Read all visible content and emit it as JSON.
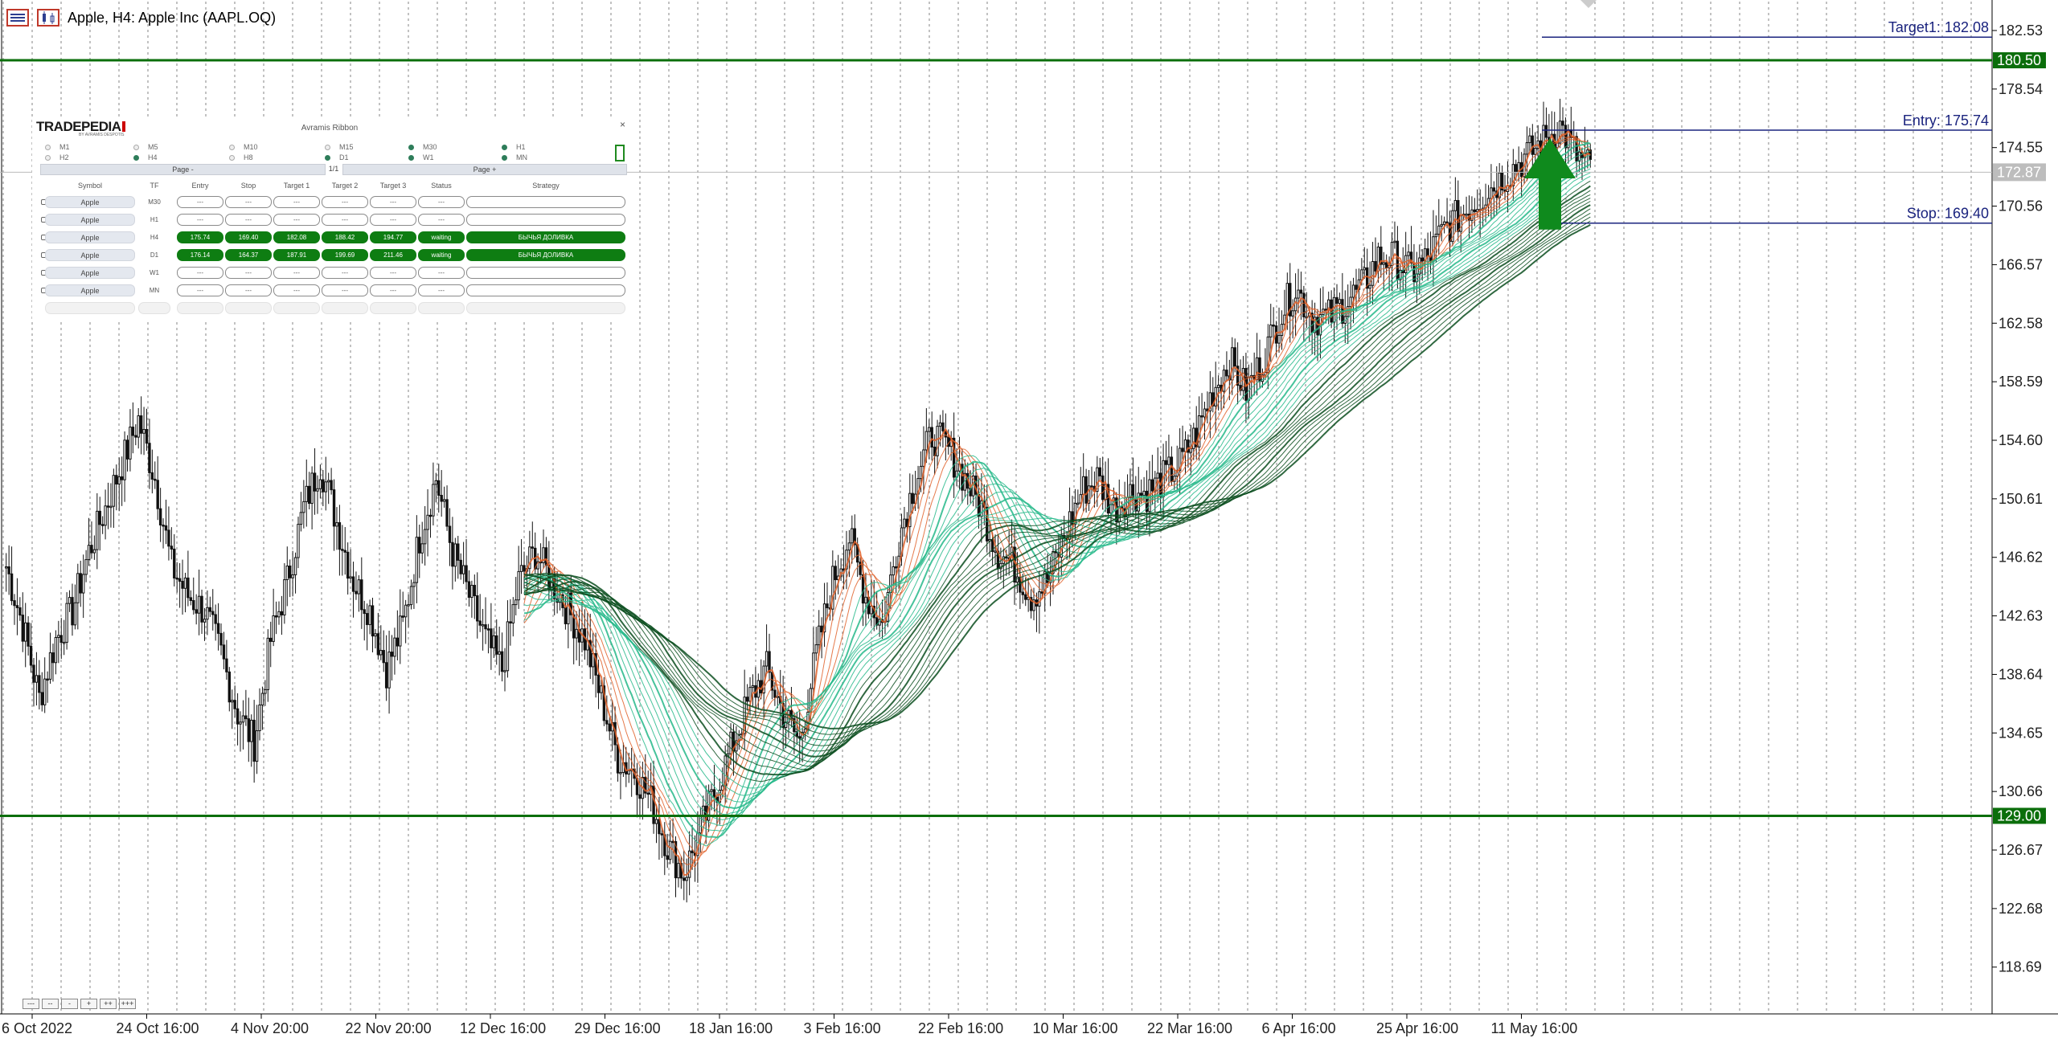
{
  "window": {
    "title": "Apple, H4:  Apple Inc (AAPL.OQ)"
  },
  "icons": {
    "menu": "chart-list-icon",
    "chart_type": "candlestick-chart-icon",
    "panel_toggle": "toggle-panel-icon",
    "close": "close-icon"
  },
  "colors": {
    "level": "#0b6e0b",
    "target_line": "#1a237e",
    "ribbon_green": "#26b98a",
    "ribbon_dark": "#0b4d1e",
    "ribbon_orange": "#e0622a",
    "buy_arrow": "#0f8a1d"
  },
  "chart_data": {
    "type": "candlestick",
    "price_axis": [
      "182.53",
      "178.54",
      "174.55",
      "170.56",
      "166.57",
      "162.58",
      "158.59",
      "154.60",
      "150.61",
      "146.62",
      "142.63",
      "138.64",
      "134.65",
      "130.66",
      "126.67",
      "122.68",
      "118.69"
    ],
    "time_axis": [
      "6 Oct 2022",
      "24 Oct 16:00",
      "4 Nov 20:00",
      "22 Nov 20:00",
      "12 Dec 16:00",
      "29 Dec 16:00",
      "18 Jan 16:00",
      "3 Feb 16:00",
      "22 Feb 16:00",
      "10 Mar 16:00",
      "22 Mar 16:00",
      "6 Apr 16:00",
      "25 Apr 16:00",
      "11 May 16:00"
    ],
    "ylim": [
      115.5,
      184.5
    ],
    "levels": [
      {
        "label": "180.50",
        "value": 180.5
      },
      {
        "label": "129.00",
        "value": 129.0
      }
    ],
    "current_price": {
      "label": "172.87",
      "value": 172.87
    },
    "trade_lines": [
      {
        "label": "Target1: 182.08",
        "value": 182.08
      },
      {
        "label": "Entry: 175.74",
        "value": 175.74
      },
      {
        "label": "Stop: 169.40",
        "value": 169.4
      }
    ],
    "price_path": [
      146,
      142,
      137,
      141,
      143,
      147,
      150,
      153,
      156,
      152,
      146,
      144,
      143,
      140,
      136,
      134,
      141,
      145,
      150,
      153,
      149,
      145,
      143,
      139,
      142,
      148,
      152,
      147,
      144,
      141,
      139,
      145,
      147,
      145,
      143,
      141,
      137,
      133,
      132,
      130,
      127,
      125,
      128,
      131,
      134,
      137,
      139,
      136,
      134,
      140,
      145,
      148,
      144,
      142,
      148,
      152,
      155,
      154,
      152,
      150,
      147,
      146,
      144,
      145,
      148,
      151,
      152,
      150,
      151,
      151,
      152,
      153,
      155,
      158,
      160,
      158,
      160,
      163,
      165,
      163,
      163,
      164,
      165,
      167,
      167,
      166,
      167,
      169,
      170,
      171,
      172,
      173,
      174,
      175,
      176,
      174,
      173
    ]
  },
  "panel": {
    "title": "Avramis Ribbon",
    "logo": "TRADEPEDIA",
    "logo_sub": "BY AVRAMIS DESPOTIS",
    "close": "×",
    "timeframes": [
      {
        "label": "M1",
        "on": false
      },
      {
        "label": "M5",
        "on": false
      },
      {
        "label": "M10",
        "on": false
      },
      {
        "label": "M15",
        "on": false
      },
      {
        "label": "M30",
        "on": true
      },
      {
        "label": "H1",
        "on": true
      },
      {
        "label": "H2",
        "on": false
      },
      {
        "label": "H4",
        "on": true
      },
      {
        "label": "H8",
        "on": false
      },
      {
        "label": "D1",
        "on": true
      },
      {
        "label": "W1",
        "on": true
      },
      {
        "label": "MN",
        "on": true
      }
    ],
    "page_prev": "Page -",
    "page_count": "1/1",
    "page_next": "Page +",
    "headers": [
      "Symbol",
      "TF",
      "Entry",
      "Stop",
      "Target 1",
      "Target 2",
      "Target 3",
      "Status",
      "Strategy"
    ],
    "rows": [
      {
        "symbol": "Apple",
        "tf": "M30",
        "entry": "---",
        "stop": "---",
        "t1": "---",
        "t2": "---",
        "t3": "---",
        "status": "---",
        "strategy": "",
        "active": false
      },
      {
        "symbol": "Apple",
        "tf": "H1",
        "entry": "---",
        "stop": "---",
        "t1": "---",
        "t2": "---",
        "t3": "---",
        "status": "---",
        "strategy": "",
        "active": false
      },
      {
        "symbol": "Apple",
        "tf": "H4",
        "entry": "175.74",
        "stop": "169.40",
        "t1": "182.08",
        "t2": "188.42",
        "t3": "194.77",
        "status": "waiting",
        "strategy": "БЫЧЬЯ ДОЛИВКА",
        "active": true
      },
      {
        "symbol": "Apple",
        "tf": "D1",
        "entry": "176.14",
        "stop": "164.37",
        "t1": "187.91",
        "t2": "199.69",
        "t3": "211.46",
        "status": "waiting",
        "strategy": "БЫЧЬЯ ДОЛИВКА",
        "active": true
      },
      {
        "symbol": "Apple",
        "tf": "W1",
        "entry": "---",
        "stop": "---",
        "t1": "---",
        "t2": "---",
        "t3": "---",
        "status": "---",
        "strategy": "",
        "active": false
      },
      {
        "symbol": "Apple",
        "tf": "MN",
        "entry": "---",
        "stop": "---",
        "t1": "---",
        "t2": "---",
        "t3": "---",
        "status": "---",
        "strategy": "",
        "active": false
      }
    ]
  },
  "nav_buttons": [
    "---",
    "--",
    "-",
    "+",
    "++",
    "+++"
  ]
}
